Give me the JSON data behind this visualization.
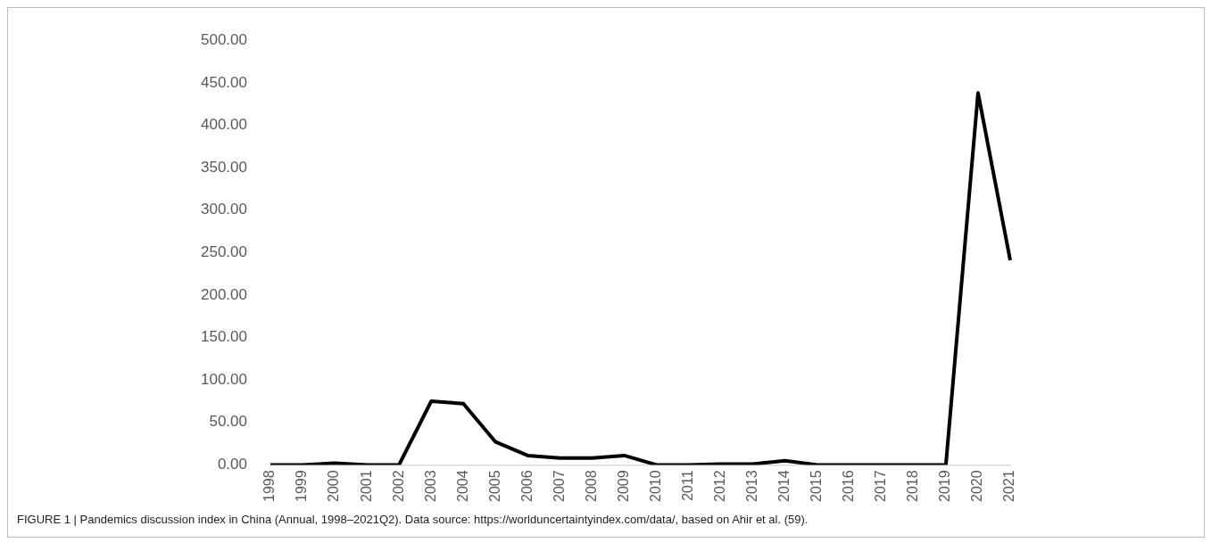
{
  "chart_data": {
    "type": "line",
    "categories": [
      "1998",
      "1999",
      "2000",
      "2001",
      "2002",
      "2003",
      "2004",
      "2005",
      "2006",
      "2007",
      "2008",
      "2009",
      "2010",
      "2011",
      "2012",
      "2013",
      "2014",
      "2015",
      "2016",
      "2017",
      "2018",
      "2019",
      "2020",
      "2021"
    ],
    "series": [
      {
        "color": "#000000",
        "values": [
          0,
          0,
          2,
          0,
          0,
          75,
          72,
          27,
          11,
          8,
          8,
          11,
          0,
          0,
          1,
          1,
          5,
          0,
          0,
          0,
          0,
          0,
          438,
          241
        ]
      }
    ],
    "ylim": [
      0,
      500
    ],
    "yticks": [
      {
        "value": 0,
        "label": "0.00"
      },
      {
        "value": 50,
        "label": "50.00"
      },
      {
        "value": 100,
        "label": "100.00"
      },
      {
        "value": 150,
        "label": "150.00"
      },
      {
        "value": 200,
        "label": "200.00"
      },
      {
        "value": 250,
        "label": "250.00"
      },
      {
        "value": 300,
        "label": "300.00"
      },
      {
        "value": 350,
        "label": "350.00"
      },
      {
        "value": 400,
        "label": "400.00"
      },
      {
        "value": 450,
        "label": "450.00"
      },
      {
        "value": 500,
        "label": "500.00"
      }
    ],
    "grid": false,
    "legend": false,
    "marker": "none",
    "line_style": "solid",
    "annotations": [
      "FIGURE 1 | Pandemics discussion index in China (Annual, 1998–2021Q2). Data source: https://worlduncertaintyindex.com/data/, based on Ahir et al. (59)."
    ]
  }
}
